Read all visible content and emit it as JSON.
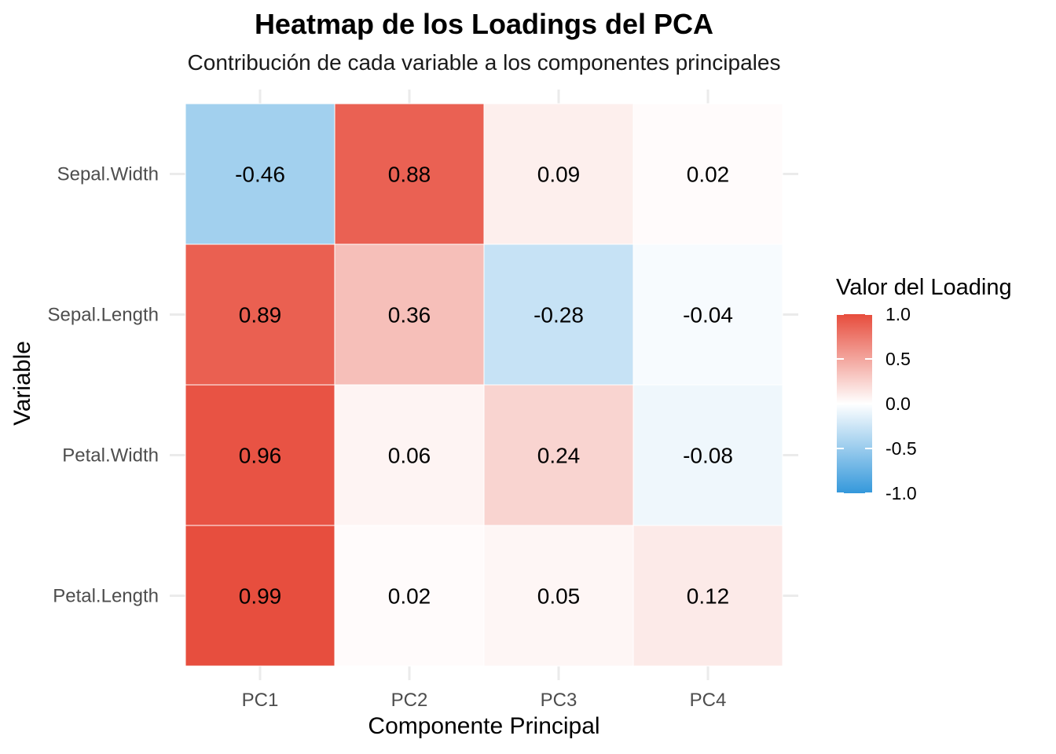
{
  "chart_data": {
    "type": "heatmap",
    "title": "Heatmap de los Loadings del PCA",
    "subtitle": "Contribución de cada variable a los componentes principales",
    "xlabel": "Componente Principal",
    "ylabel": "Variable",
    "x_categories": [
      "PC1",
      "PC2",
      "PC3",
      "PC4"
    ],
    "y_categories": [
      "Sepal.Width",
      "Sepal.Length",
      "Petal.Width",
      "Petal.Length"
    ],
    "values": [
      [
        -0.46,
        0.88,
        0.09,
        0.02
      ],
      [
        0.89,
        0.36,
        -0.28,
        -0.04
      ],
      [
        0.96,
        0.06,
        0.24,
        -0.08
      ],
      [
        0.99,
        0.02,
        0.05,
        0.12
      ]
    ],
    "legend": {
      "title": "Valor del Loading",
      "range": [
        -1.0,
        1.0
      ],
      "ticks": [
        "1.0",
        "0.5",
        "0.0",
        "-0.5",
        "-1.0"
      ],
      "colors": {
        "low": "#3498db",
        "mid": "#ffffff",
        "high": "#e74c3c"
      },
      "placement": "right"
    },
    "grid": true
  }
}
